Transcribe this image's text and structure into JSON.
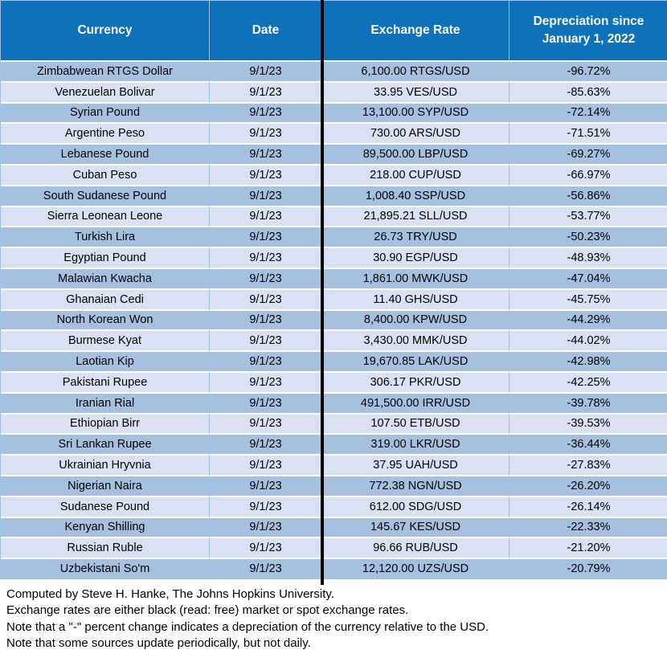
{
  "chart_data": {
    "type": "table",
    "columns": [
      "Currency",
      "Date",
      "Exchange Rate",
      "Depreciation since January 1, 2022"
    ],
    "rows": [
      [
        "Zimbabwean RTGS Dollar",
        "9/1/23",
        "6,100.00 RTGS/USD",
        "-96.72%"
      ],
      [
        "Venezuelan Bolivar",
        "9/1/23",
        "33.95 VES/USD",
        "-85.63%"
      ],
      [
        "Syrian Pound",
        "9/1/23",
        "13,100.00 SYP/USD",
        "-72.14%"
      ],
      [
        "Argentine Peso",
        "9/1/23",
        "730.00 ARS/USD",
        "-71.51%"
      ],
      [
        "Lebanese Pound",
        "9/1/23",
        "89,500.00 LBP/USD",
        "-69.27%"
      ],
      [
        "Cuban Peso",
        "9/1/23",
        "218.00 CUP/USD",
        "-66.97%"
      ],
      [
        "South Sudanese Pound",
        "9/1/23",
        "1,008.40 SSP/USD",
        "-56.86%"
      ],
      [
        "Sierra Leonean Leone",
        "9/1/23",
        "21,895.21 SLL/USD",
        "-53.77%"
      ],
      [
        "Turkish Lira",
        "9/1/23",
        "26.73 TRY/USD",
        "-50.23%"
      ],
      [
        "Egyptian Pound",
        "9/1/23",
        "30.90 EGP/USD",
        "-48.93%"
      ],
      [
        "Malawian Kwacha",
        "9/1/23",
        "1,861.00 MWK/USD",
        "-47.04%"
      ],
      [
        "Ghanaian Cedi",
        "9/1/23",
        "11.40 GHS/USD",
        "-45.75%"
      ],
      [
        "North Korean Won",
        "9/1/23",
        "8,400.00 KPW/USD",
        "-44.29%"
      ],
      [
        "Burmese Kyat",
        "9/1/23",
        "3,430.00 MMK/USD",
        "-44.02%"
      ],
      [
        "Laotian Kip",
        "9/1/23",
        "19,670.85 LAK/USD",
        "-42.98%"
      ],
      [
        "Pakistani Rupee",
        "9/1/23",
        "306.17 PKR/USD",
        "-42.25%"
      ],
      [
        "Iranian Rial",
        "9/1/23",
        "491,500.00 IRR/USD",
        "-39.78%"
      ],
      [
        "Ethiopian Birr",
        "9/1/23",
        "107.50 ETB/USD",
        "-39.53%"
      ],
      [
        "Sri Lankan Rupee",
        "9/1/23",
        "319.00 LKR/USD",
        "-36.44%"
      ],
      [
        "Ukrainian Hryvnia",
        "9/1/23",
        "37.95 UAH/USD",
        "-27.83%"
      ],
      [
        "Nigerian Naira",
        "9/1/23",
        "772.38 NGN/USD",
        "-26.20%"
      ],
      [
        "Sudanese Pound",
        "9/1/23",
        "612.00 SDG/USD",
        "-26.14%"
      ],
      [
        "Kenyan Shilling",
        "9/1/23",
        "145.67 KES/USD",
        "-22.33%"
      ],
      [
        "Russian Ruble",
        "9/1/23",
        "96.66 RUB/USD",
        "-21.20%"
      ],
      [
        "Uzbekistani So'm",
        "9/1/23",
        "12,120.00 UZS/USD",
        "-20.79%"
      ]
    ]
  },
  "footer": {
    "lines": [
      "Computed by Steve H. Hanke, The Johns Hopkins University.",
      "Exchange rates are either black (read: free) market or spot exchange rates.",
      "Note that a \"-\" percent change indicates a depreciation of the currency relative to the USD.",
      "Note that some sources update periodically, but not daily."
    ]
  },
  "colors": {
    "header_bg": "#0E71BC",
    "header_text": "#FFFFFF",
    "row_dark": "#A6C1E0",
    "row_light": "#DAE1F3",
    "grid_line": "#9CC2E5",
    "column_divider": "#000000",
    "body_text": "#000000"
  }
}
